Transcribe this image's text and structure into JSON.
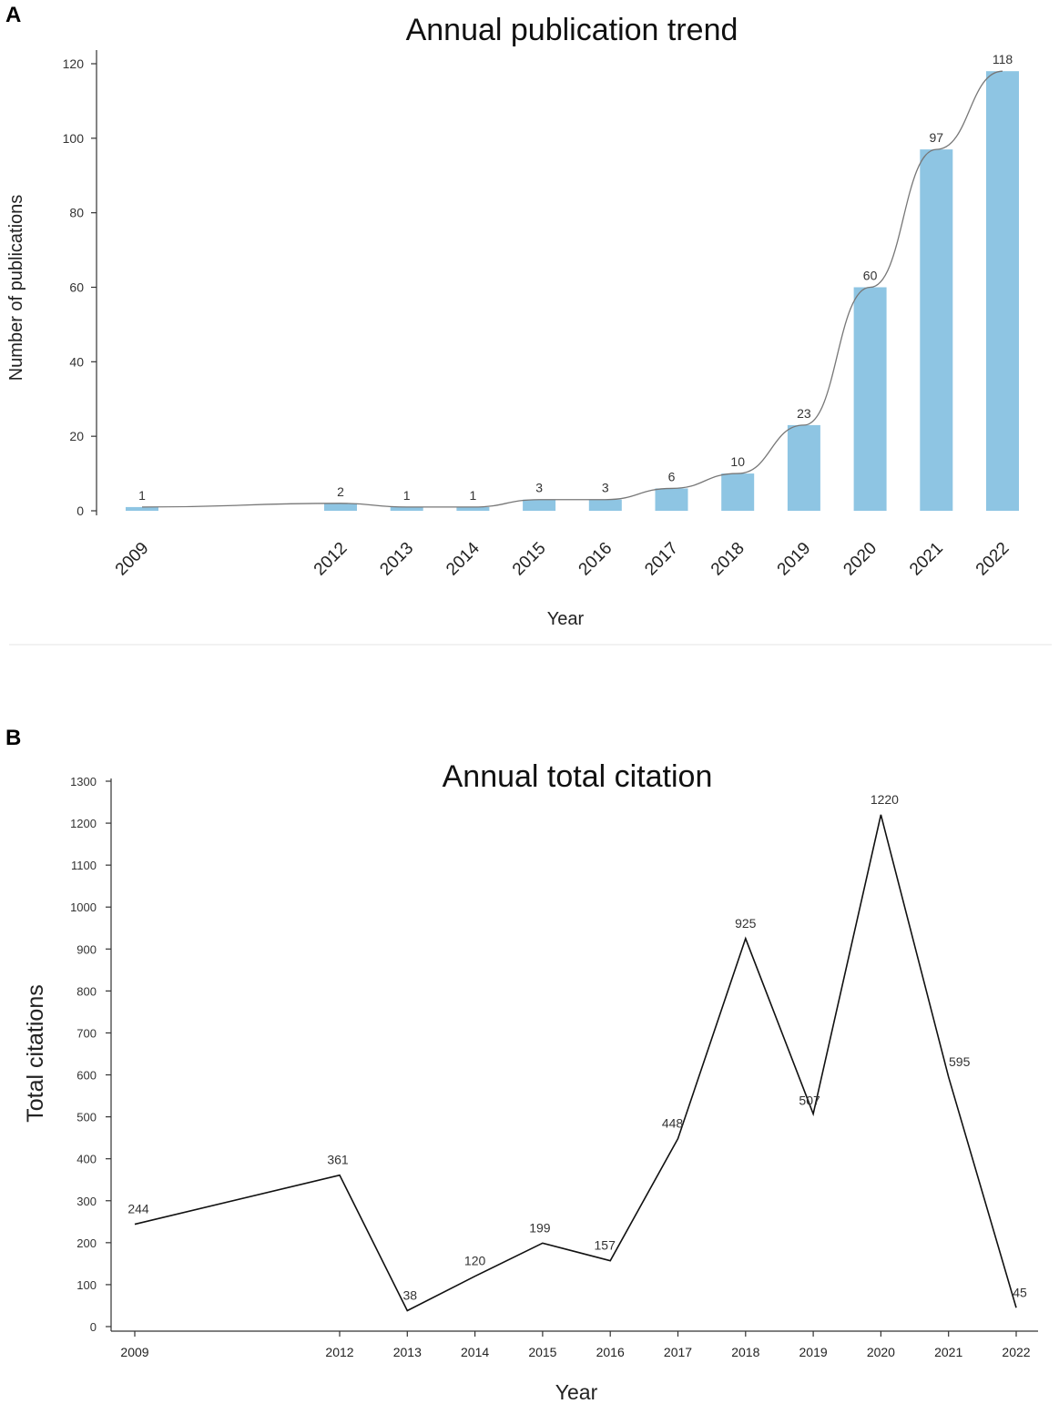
{
  "panels": {
    "a": "A",
    "b": "B"
  },
  "chart_data": [
    {
      "type": "bar",
      "title": "Annual publication trend",
      "xlabel": "Year",
      "ylabel": "Number of publications",
      "categories": [
        "2009",
        "2012",
        "2013",
        "2014",
        "2015",
        "2016",
        "2017",
        "2018",
        "2019",
        "2020",
        "2021",
        "2022"
      ],
      "values": [
        1,
        2,
        1,
        1,
        3,
        3,
        6,
        10,
        23,
        60,
        97,
        118
      ],
      "ylim": [
        0,
        120
      ],
      "yticks": [
        0,
        20,
        40,
        60,
        80,
        100,
        120
      ],
      "trend_line": true,
      "bar_color": "#8ec5e3",
      "line_color": "#777777"
    },
    {
      "type": "line",
      "title": "Annual total citation",
      "xlabel": "Year",
      "ylabel": "Total citations",
      "categories": [
        "2009",
        "2012",
        "2013",
        "2014",
        "2015",
        "2016",
        "2017",
        "2018",
        "2019",
        "2020",
        "2021",
        "2022"
      ],
      "values": [
        244,
        361,
        38,
        120,
        199,
        157,
        448,
        925,
        507,
        1220,
        595,
        45
      ],
      "ylim": [
        0,
        1300
      ],
      "yticks": [
        0,
        100,
        200,
        300,
        400,
        500,
        600,
        700,
        800,
        900,
        1000,
        1100,
        1200,
        1300
      ],
      "line_color": "#111111"
    }
  ]
}
